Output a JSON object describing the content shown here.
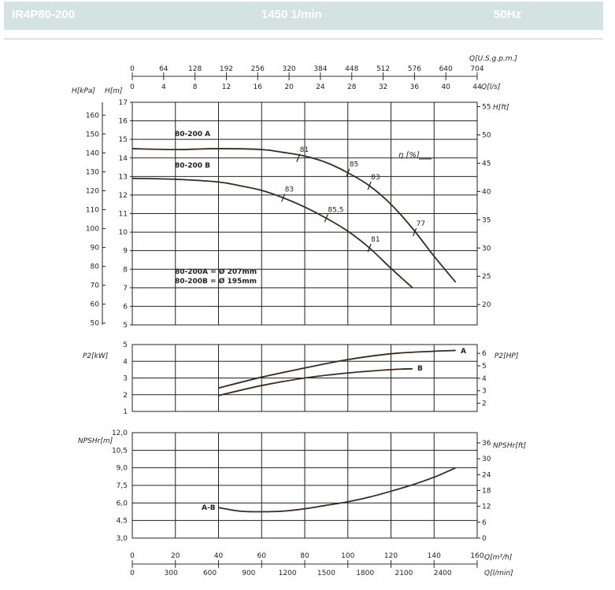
{
  "header": {
    "model": "IR4P80-200",
    "speed": "1450 1/min",
    "frequency": "50Hz"
  },
  "chart_data": {
    "type": "line",
    "flow_scales": {
      "usgpm": {
        "label": "Q[U.S.g.p.m.]",
        "ticks": [
          "0",
          "64",
          "128",
          "192",
          "256",
          "320",
          "384",
          "448",
          "512",
          "576",
          "640",
          "704"
        ]
      },
      "ls": {
        "label": "Q[l/s]",
        "ticks": [
          "0",
          "4",
          "8",
          "12",
          "16",
          "20",
          "24",
          "28",
          "32",
          "36",
          "40",
          "44"
        ]
      },
      "m3h": {
        "label": "Q[m³/h]",
        "ticks": [
          "0",
          "20",
          "40",
          "60",
          "80",
          "100",
          "120",
          "140",
          "160"
        ]
      },
      "lmin": {
        "label": "Q[l/min]",
        "ticks": [
          "0",
          "300",
          "600",
          "900",
          "1200",
          "1500",
          "1800",
          "2100",
          "2400"
        ]
      }
    },
    "head_panel": {
      "ylabel_left_kpa": "H[kPa]",
      "ylabel_left_m": "H[m]",
      "ylabel_right": "H[ft]",
      "ylim_m": [
        5,
        17
      ],
      "ticks_m": [
        "5",
        "6",
        "7",
        "8",
        "9",
        "10",
        "11",
        "12",
        "13",
        "14",
        "15",
        "16",
        "17"
      ],
      "ticks_kpa": [
        "50",
        "60",
        "70",
        "80",
        "90",
        "100",
        "110",
        "120",
        "130",
        "140",
        "150",
        "160"
      ],
      "ticks_ft": [
        "20",
        "25",
        "30",
        "35",
        "40",
        "45",
        "50",
        "55"
      ],
      "efficiency_label": "η [%]",
      "series": [
        {
          "name": "80-200 A",
          "q": [
            0,
            20,
            40,
            60,
            70,
            80,
            90,
            100,
            110,
            120,
            130,
            140,
            150
          ],
          "h": [
            14.5,
            14.45,
            14.5,
            14.45,
            14.3,
            14.1,
            13.75,
            13.2,
            12.5,
            11.5,
            10.2,
            8.7,
            7.3
          ]
        },
        {
          "name": "80-200 B",
          "q": [
            0,
            20,
            40,
            50,
            60,
            70,
            80,
            90,
            100,
            110,
            120,
            130
          ],
          "h": [
            12.9,
            12.85,
            12.7,
            12.5,
            12.25,
            11.85,
            11.35,
            10.75,
            10.05,
            9.15,
            8.05,
            7.0
          ]
        }
      ],
      "efficiency_marks": [
        {
          "label": "81",
          "q": 77,
          "h": 14.0
        },
        {
          "label": "85",
          "q": 100,
          "h": 13.2
        },
        {
          "label": "83",
          "q": 110,
          "h": 12.5
        },
        {
          "label": "77",
          "q": 131,
          "h": 10.0
        },
        {
          "label": "83",
          "q": 70,
          "h": 11.85
        },
        {
          "label": "85,5",
          "q": 90,
          "h": 10.75
        },
        {
          "label": "81",
          "q": 110,
          "h": 9.15
        }
      ],
      "impeller_note": [
        "80-200A = Ø 207mm",
        "80-200B = Ø 195mm"
      ]
    },
    "power_panel": {
      "ylabel_left": "P2[kW]",
      "ylabel_right": "P2[HP]",
      "ylim": [
        1,
        5
      ],
      "ticks_kw": [
        "1",
        "2",
        "3",
        "4",
        "5"
      ],
      "ticks_hp": [
        "2",
        "3",
        "4",
        "5",
        "6"
      ],
      "series": [
        {
          "name": "A",
          "q": [
            40,
            60,
            80,
            100,
            120,
            140,
            150
          ],
          "p": [
            2.4,
            3.05,
            3.6,
            4.1,
            4.45,
            4.6,
            4.65
          ]
        },
        {
          "name": "B",
          "q": [
            40,
            60,
            80,
            100,
            120,
            130
          ],
          "p": [
            1.95,
            2.55,
            3.0,
            3.3,
            3.5,
            3.55
          ]
        }
      ]
    },
    "npsh_panel": {
      "ylabel_left": "NPSHr[m]",
      "ylabel_right": "NPSHr[ft]",
      "ylim": [
        3.0,
        12.0
      ],
      "ticks_m": [
        "3,0",
        "4,5",
        "6,0",
        "7,5",
        "9,0",
        "10,5",
        "12,0"
      ],
      "ticks_ft": [
        "0",
        "6",
        "12",
        "18",
        "24",
        "30",
        "36"
      ],
      "series": [
        {
          "name": "A-B",
          "q": [
            40,
            50,
            60,
            70,
            80,
            90,
            100,
            110,
            120,
            130,
            140,
            150
          ],
          "npsh": [
            5.6,
            5.3,
            5.25,
            5.3,
            5.5,
            5.8,
            6.1,
            6.5,
            7.0,
            7.55,
            8.2,
            9.0
          ]
        }
      ]
    },
    "grid": true
  }
}
